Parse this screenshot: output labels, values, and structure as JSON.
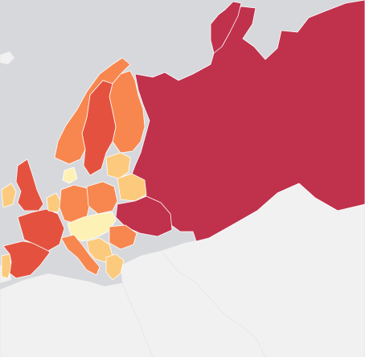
{
  "map": {
    "palette": {
      "sea": "#d6d8dc",
      "land": "#f1f1f1",
      "level_1": "#fdf1b6",
      "level_2": "#fcca7c",
      "level_3": "#f7874f",
      "level_4": "#e4523f",
      "level_5": "#c0314c"
    },
    "regions": [
      {
        "id": "russia",
        "level": 5
      },
      {
        "id": "ukraine",
        "level": 5
      },
      {
        "id": "france",
        "level": 4
      },
      {
        "id": "spain",
        "level": 4
      },
      {
        "id": "united-kingdom",
        "level": 4
      },
      {
        "id": "italy",
        "level": 3
      },
      {
        "id": "germany",
        "level": 3
      },
      {
        "id": "poland",
        "level": 3
      },
      {
        "id": "norway",
        "level": 3
      },
      {
        "id": "sweden",
        "level": 4
      },
      {
        "id": "finland",
        "level": 3
      },
      {
        "id": "romania",
        "level": 3
      },
      {
        "id": "belarus",
        "level": 2
      },
      {
        "id": "ireland",
        "level": 2
      },
      {
        "id": "portugal",
        "level": 2
      },
      {
        "id": "benelux",
        "level": 2
      },
      {
        "id": "baltics",
        "level": 2
      },
      {
        "id": "central-europe",
        "level": 1
      },
      {
        "id": "balkans",
        "level": 2
      },
      {
        "id": "denmark",
        "level": 1
      },
      {
        "id": "greece",
        "level": 2
      }
    ]
  }
}
